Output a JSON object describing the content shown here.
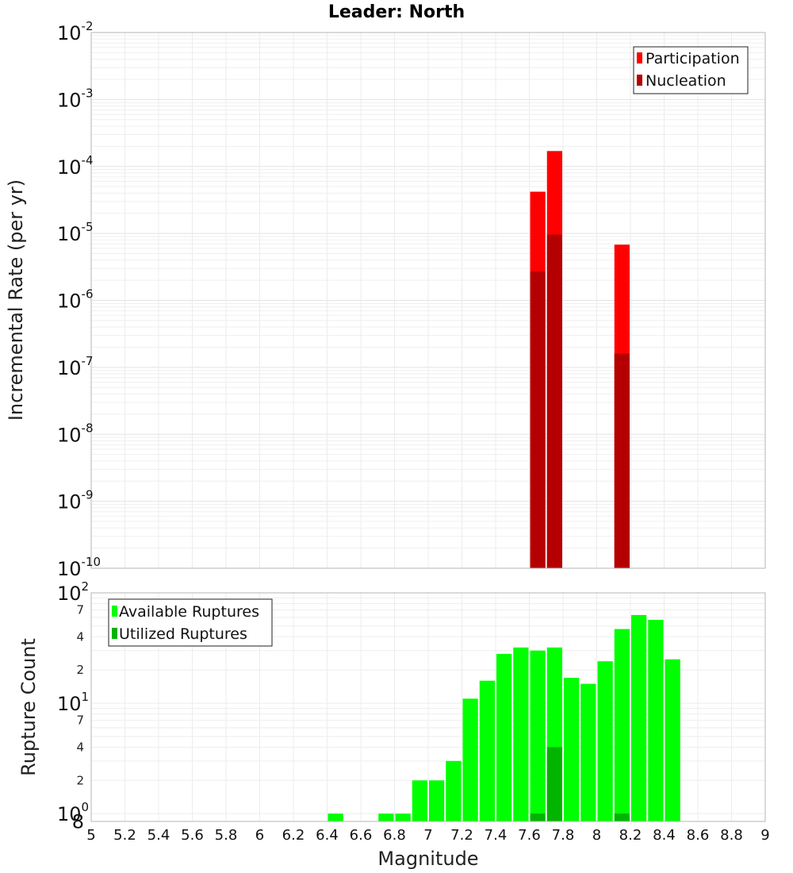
{
  "chart_data": [
    {
      "type": "bar",
      "title": "Leader: North",
      "xlabel": "Magnitude",
      "ylabel": "Incremental Rate (per yr)",
      "yscale": "log",
      "ylim": [
        1e-10,
        0.01
      ],
      "xlim": [
        5,
        9
      ],
      "bin_width": 0.1,
      "y_tick_labels": [
        {
          "base": "10",
          "exp": "-10"
        },
        {
          "base": "10",
          "exp": "-9"
        },
        {
          "base": "10",
          "exp": "-8"
        },
        {
          "base": "10",
          "exp": "-7"
        },
        {
          "base": "10",
          "exp": "-6"
        },
        {
          "base": "10",
          "exp": "-5"
        },
        {
          "base": "10",
          "exp": "-4"
        },
        {
          "base": "10",
          "exp": "-3"
        },
        {
          "base": "10",
          "exp": "-2"
        }
      ],
      "legend": {
        "position": "top-right",
        "entries": [
          "Participation",
          "Nucleation"
        ]
      },
      "series": [
        {
          "name": "Participation",
          "color": "#ff0000",
          "x": [
            7.65,
            7.75,
            8.15
          ],
          "values": [
            4.2e-05,
            0.00017,
            6.8e-06
          ]
        },
        {
          "name": "Nucleation",
          "color": "#b40000",
          "x": [
            7.65,
            7.75,
            8.15
          ],
          "values": [
            2.7e-06,
            9.6e-06,
            1.6e-07
          ]
        }
      ]
    },
    {
      "type": "bar",
      "xlabel": "Magnitude",
      "ylabel": "Rupture Count",
      "yscale": "log",
      "ylim": [
        0.85,
        100
      ],
      "xlim": [
        5,
        9
      ],
      "bin_width": 0.1,
      "x_tick_labels": [
        "5",
        "5.2",
        "5.4",
        "5.6",
        "5.8",
        "6",
        "6.2",
        "6.4",
        "6.6",
        "6.8",
        "7",
        "7.2",
        "7.4",
        "7.6",
        "7.8",
        "8",
        "8.2",
        "8.4",
        "8.6",
        "8.8",
        "9"
      ],
      "y_major_ticks": [
        {
          "base": "10",
          "exp": "0",
          "value": 1
        },
        {
          "base": "10",
          "exp": "1",
          "value": 10
        },
        {
          "base": "10",
          "exp": "2",
          "value": 100
        }
      ],
      "y_minor_ticks": [
        {
          "label": "8",
          "value": 0.8
        },
        {
          "label": "2",
          "value": 2
        },
        {
          "label": "4",
          "value": 4
        },
        {
          "label": "7",
          "value": 7
        },
        {
          "label": "2",
          "value": 20
        },
        {
          "label": "4",
          "value": 40
        },
        {
          "label": "7",
          "value": 70
        }
      ],
      "legend": {
        "position": "top-left",
        "entries": [
          "Available Ruptures",
          "Utilized Ruptures"
        ]
      },
      "series": [
        {
          "name": "Available Ruptures",
          "color": "#00ff00",
          "x": [
            6.45,
            6.75,
            6.85,
            6.95,
            7.05,
            7.15,
            7.25,
            7.35,
            7.45,
            7.55,
            7.65,
            7.75,
            7.85,
            7.95,
            8.05,
            8.15,
            8.25,
            8.35,
            8.45
          ],
          "values": [
            1,
            1,
            1,
            2,
            2,
            3,
            11,
            16,
            28,
            32,
            30,
            32,
            17,
            15,
            24,
            47,
            63,
            57,
            25
          ]
        },
        {
          "name": "Utilized Ruptures",
          "color": "#00b400",
          "x": [
            7.65,
            7.75,
            8.15
          ],
          "values": [
            1,
            4,
            1
          ]
        }
      ]
    }
  ]
}
